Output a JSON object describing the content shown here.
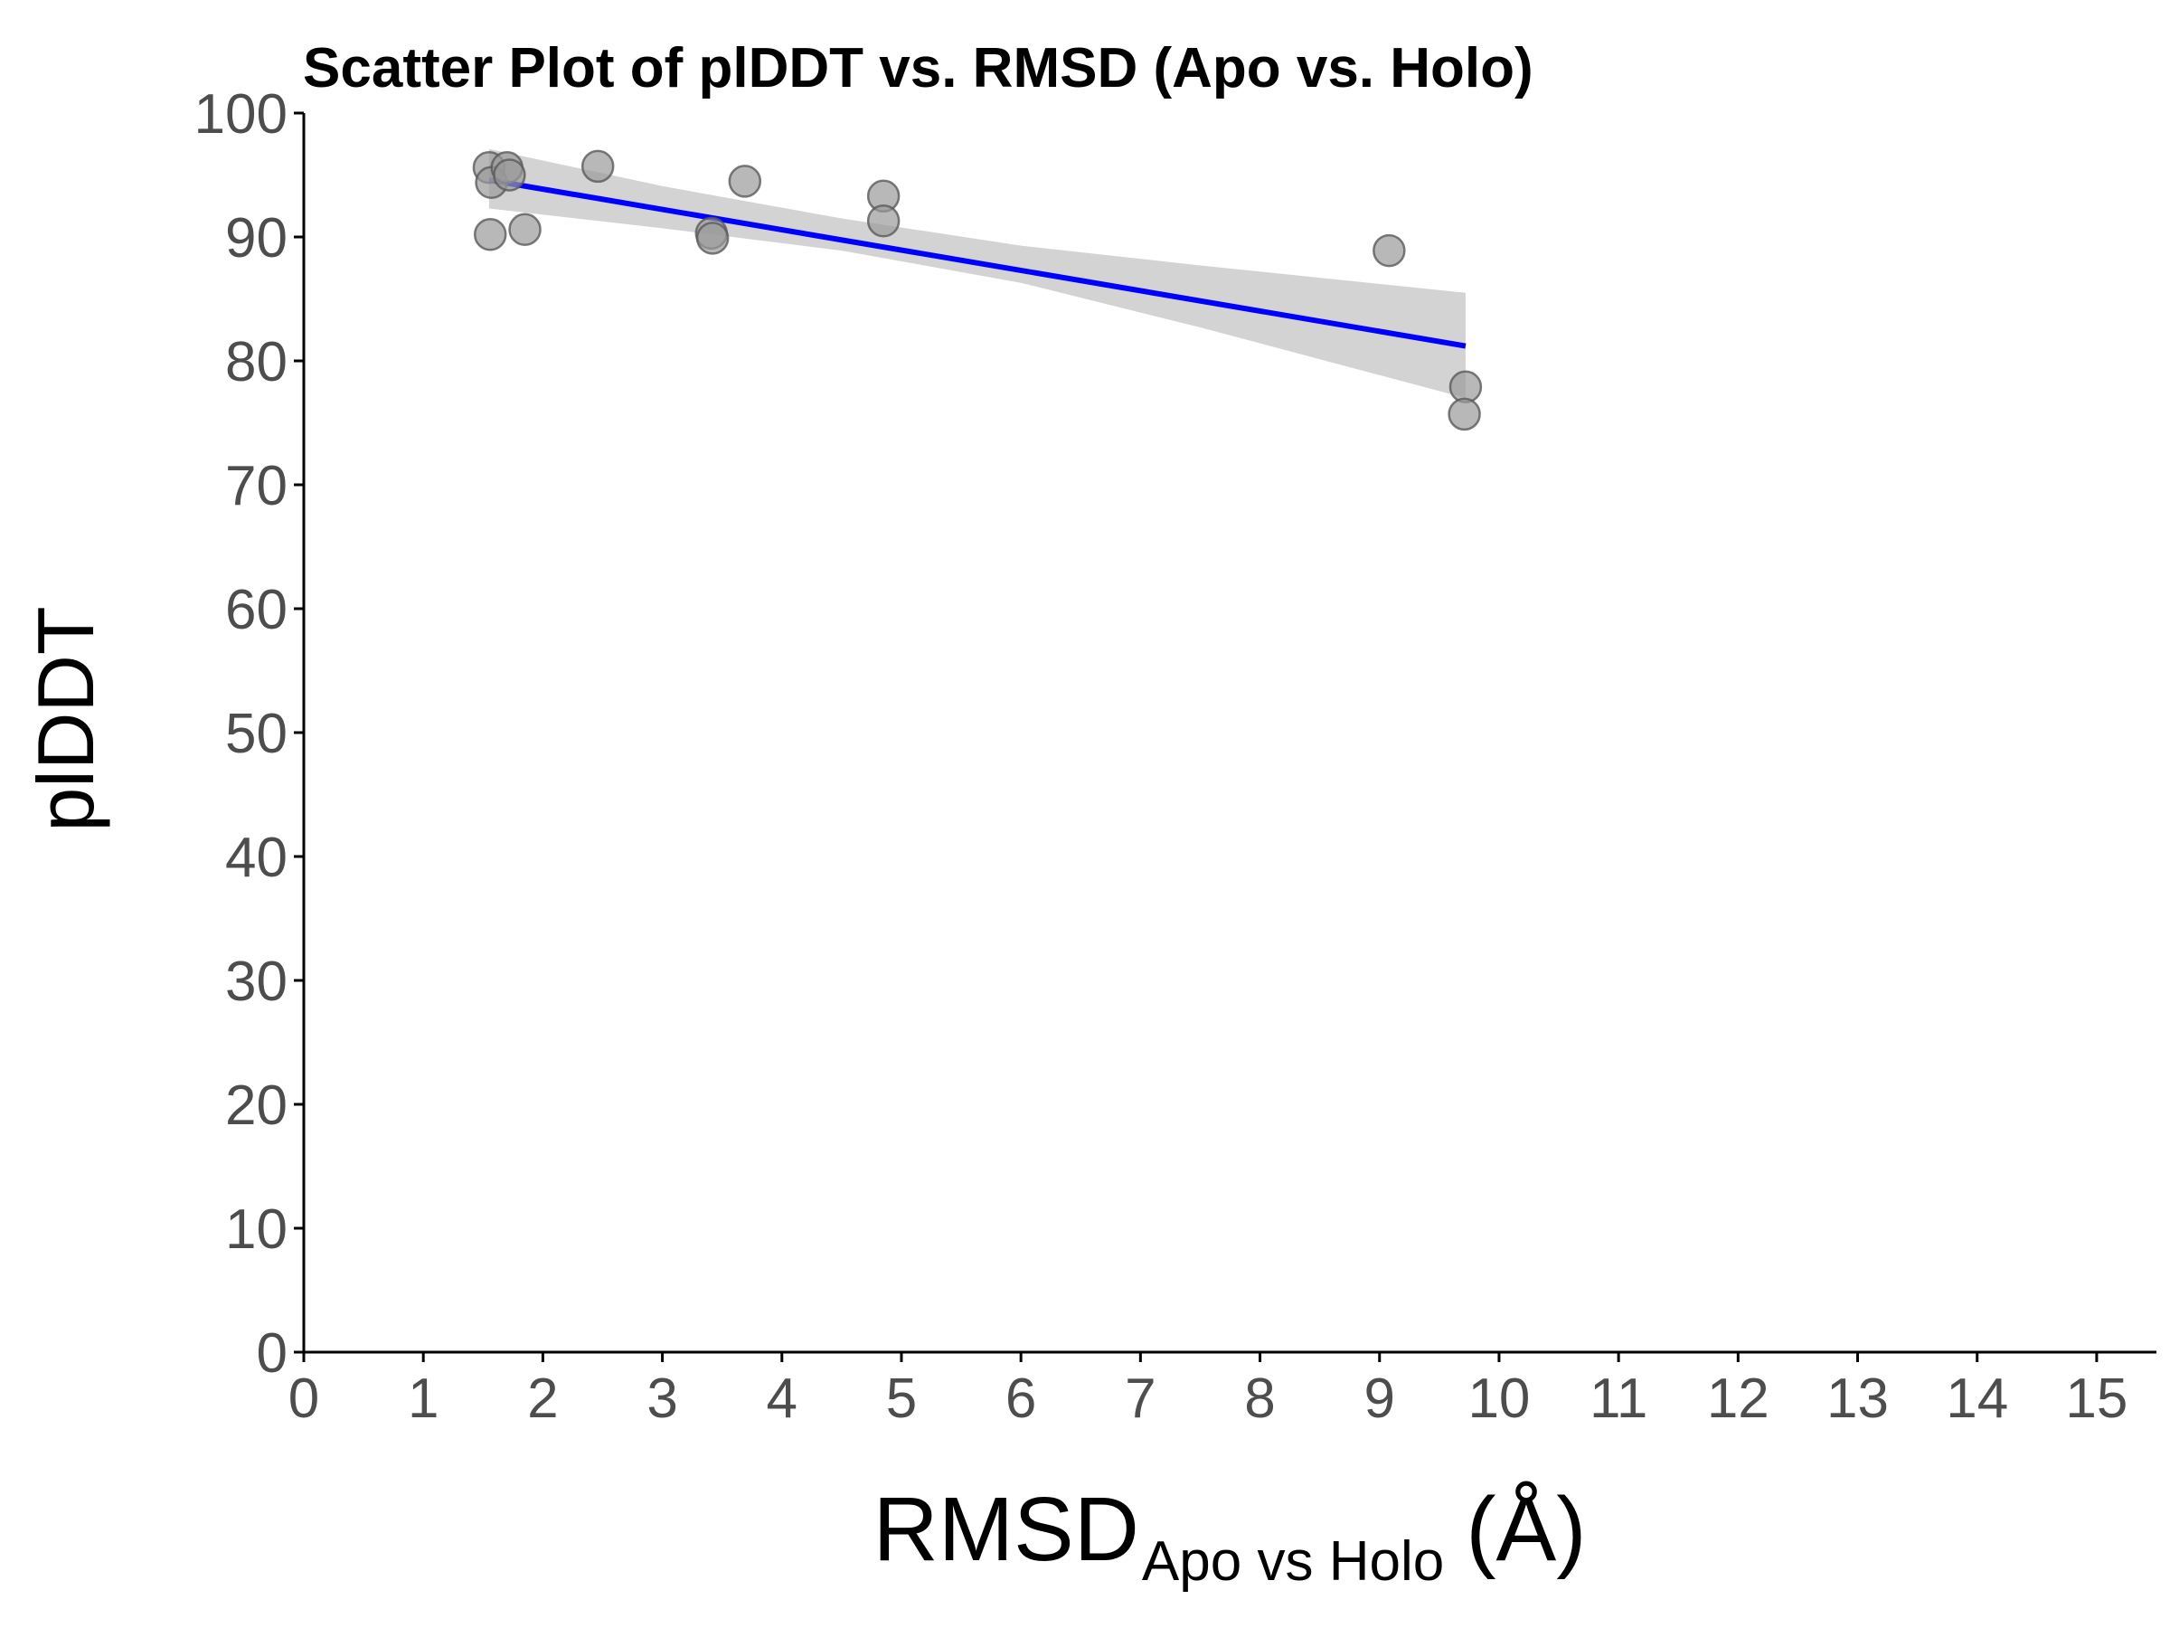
{
  "chart_data": {
    "type": "scatter",
    "title": "Scatter Plot of plDDT vs. RMSD (Apo vs. Holo)",
    "xlabel": {
      "main": "RMSD",
      "subscript": "Apo vs Holo",
      "unit": "(Å)"
    },
    "ylabel": "plDDT",
    "xlim": [
      0,
      15.5
    ],
    "ylim": [
      0,
      100
    ],
    "xticks": [
      0,
      1,
      2,
      3,
      4,
      5,
      6,
      7,
      8,
      9,
      10,
      11,
      12,
      13,
      14,
      15
    ],
    "yticks": [
      0,
      10,
      20,
      30,
      40,
      50,
      60,
      70,
      80,
      90,
      100
    ],
    "grid": false,
    "legend": "none",
    "points": [
      {
        "x": 1.55,
        "y": 95.6
      },
      {
        "x": 1.57,
        "y": 94.4
      },
      {
        "x": 1.7,
        "y": 95.6
      },
      {
        "x": 1.72,
        "y": 95.0
      },
      {
        "x": 1.56,
        "y": 90.2
      },
      {
        "x": 1.85,
        "y": 90.6
      },
      {
        "x": 2.46,
        "y": 95.7
      },
      {
        "x": 3.41,
        "y": 90.3
      },
      {
        "x": 3.42,
        "y": 89.9
      },
      {
        "x": 3.69,
        "y": 94.5
      },
      {
        "x": 4.85,
        "y": 93.3
      },
      {
        "x": 4.85,
        "y": 91.3
      },
      {
        "x": 9.08,
        "y": 88.9
      },
      {
        "x": 9.72,
        "y": 77.9
      },
      {
        "x": 9.71,
        "y": 75.7
      }
    ],
    "fit": {
      "method": "linear",
      "x_start": 1.55,
      "y_start": 94.6,
      "x_end": 9.72,
      "y_end": 81.2,
      "ci_band": [
        {
          "x": 1.55,
          "lo": 92.3,
          "hi": 97.1
        },
        {
          "x": 3.0,
          "lo": 90.7,
          "hi": 94.1
        },
        {
          "x": 4.5,
          "lo": 88.9,
          "hi": 91.5
        },
        {
          "x": 6.0,
          "lo": 86.3,
          "hi": 89.3
        },
        {
          "x": 7.5,
          "lo": 82.7,
          "hi": 87.7
        },
        {
          "x": 9.72,
          "lo": 77.0,
          "hi": 85.5
        }
      ]
    },
    "colors": {
      "point_fill": "#9a9a9a",
      "point_stroke": "#5a5a5a",
      "fit_line": "#0000ff",
      "ci_band": "#d3d3d3",
      "axis": "#000000",
      "tick_text": "#4d4d4d"
    }
  }
}
